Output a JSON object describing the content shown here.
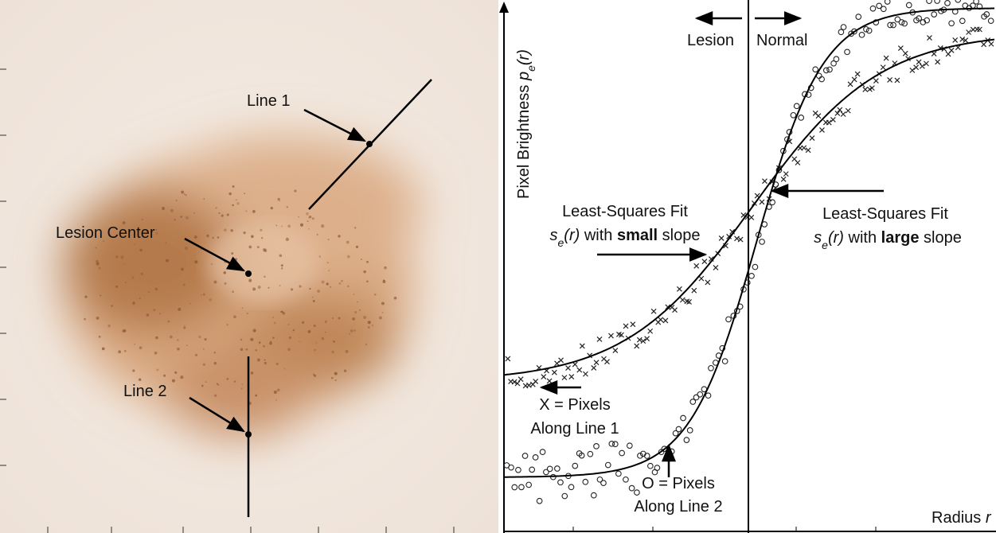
{
  "photo": {
    "labels": [
      "Line 1",
      "Lesion Center",
      "Line 2"
    ]
  },
  "plot": {
    "y_axis": {
      "text": "Pixel Brightness ",
      "sym": "p",
      "sub": "e",
      "arg": "(r)"
    },
    "x_axis": {
      "text": "Radius ",
      "sym": "r"
    },
    "regions": [
      "Lesion",
      "Normal"
    ],
    "fits": [
      {
        "title": "Least-Squares Fit",
        "sym": "s",
        "sub": "e",
        "arg": "(r)",
        "pre": " with ",
        "emph": "small",
        "post": " slope"
      },
      {
        "title": "Least-Squares Fit",
        "sym": "s",
        "sub": "e",
        "arg": "(r)",
        "pre": " with ",
        "emph": "large",
        "post": " slope"
      }
    ],
    "legend": [
      {
        "lines": [
          "X = Pixels",
          "Along Line 1"
        ]
      },
      {
        "lines": [
          "O = Pixels",
          "Along Line 2"
        ]
      }
    ]
  }
}
